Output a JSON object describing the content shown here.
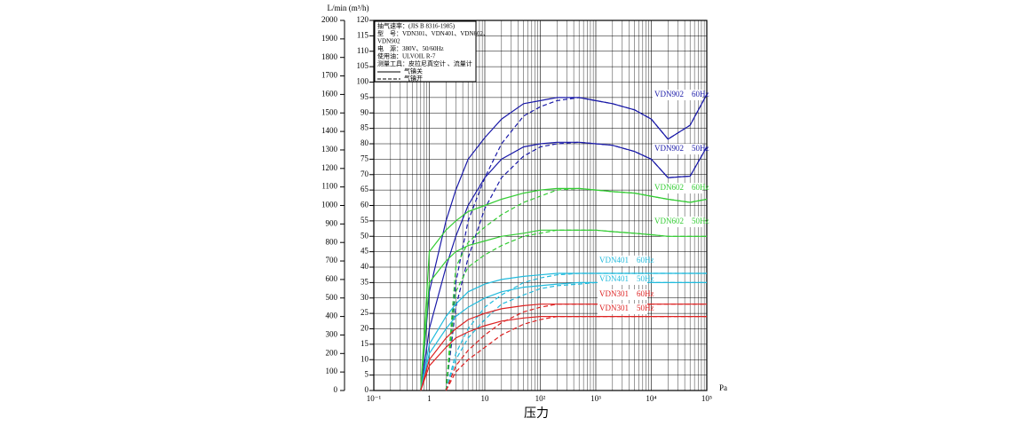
{
  "chart_data": {
    "type": "line",
    "y_axis_label": "L/min (m³/h)",
    "x_axis_label": "压力",
    "x_unit": "Pa",
    "log_x": true,
    "xlim": [
      0.1,
      100000
    ],
    "xticks": [
      {
        "value": 0.1,
        "label": "10⁻¹"
      },
      1,
      10,
      {
        "value": 100,
        "label": "10²"
      },
      {
        "value": 1000,
        "label": "10³"
      },
      {
        "value": 10000,
        "label": "10⁴"
      },
      {
        "value": 100000,
        "label": "10⁵"
      }
    ],
    "xminor": [
      0.2,
      0.3,
      0.4,
      0.5,
      0.6,
      0.7,
      0.8,
      0.9,
      2,
      3,
      4,
      5,
      6,
      7,
      8,
      9,
      20,
      30,
      40,
      50,
      60,
      70,
      80,
      90,
      200,
      300,
      400,
      500,
      600,
      700,
      800,
      900,
      2000,
      3000,
      4000,
      5000,
      6000,
      7000,
      8000,
      9000,
      20000,
      30000,
      40000,
      50000,
      60000,
      70000,
      80000,
      90000
    ],
    "ylim": [
      0,
      2000
    ],
    "yticks": [
      0,
      100,
      200,
      300,
      400,
      500,
      600,
      700,
      800,
      900,
      1000,
      1100,
      1200,
      1300,
      1400,
      1500,
      1600,
      1700,
      1800,
      1900,
      2000
    ],
    "y2lim": [
      0,
      120
    ],
    "y2ticks": [
      0,
      5,
      10,
      15,
      20,
      25,
      30,
      35,
      40,
      45,
      50,
      55,
      60,
      65,
      70,
      75,
      80,
      85,
      90,
      95,
      100,
      105,
      110,
      115,
      120
    ],
    "grid": true,
    "legend": {
      "lines": [
        "抽气速率：(JIS B 8316-1985)",
        "型　号：VDN301、VDN401、VDN602、",
        "VDN902",
        "电　源：380V、50/60Hz",
        "使用油：ULVOIL R-7",
        "测量工具：皮拉尼真空计 、流量计"
      ],
      "solid_label": "气镇关",
      "dashed_label": "气镇开"
    },
    "x": [
      0.7,
      1,
      2,
      3,
      5,
      10,
      20,
      50,
      100,
      200,
      500,
      1000,
      2000,
      5000,
      10000,
      20000,
      50000,
      100000
    ],
    "series": [
      {
        "name": "VDN902　60Hz",
        "color": "#1a1aa8",
        "axis": "y2",
        "values": [
          0,
          32,
          55,
          65,
          75,
          82,
          88,
          93,
          94,
          95,
          95,
          94,
          93,
          91,
          88,
          81.5,
          86,
          96
        ],
        "ballast_open_values": [
          null,
          null,
          0,
          35,
          55,
          69,
          80,
          89,
          92,
          94,
          95,
          94,
          93,
          91,
          88,
          81.5,
          86,
          96
        ]
      },
      {
        "name": "VDN902　50Hz",
        "color": "#1a1aa8",
        "axis": "y2",
        "values": [
          0,
          20,
          40,
          50,
          60,
          69,
          75,
          79,
          80,
          80.5,
          80.5,
          80,
          79.5,
          77.5,
          75,
          69,
          69.5,
          79
        ],
        "ballast_open_values": [
          null,
          null,
          0,
          27,
          43,
          59,
          69,
          76,
          79,
          80,
          80.5,
          80,
          79.5,
          77.5,
          75,
          69,
          69.5,
          79
        ]
      },
      {
        "name": "VDN602　60Hz",
        "color": "#33cc33",
        "axis": "y2",
        "values": [
          0,
          45,
          52,
          55,
          58,
          60,
          62,
          64,
          65,
          65.5,
          65.5,
          65,
          64.5,
          64,
          63,
          62,
          61,
          62
        ],
        "ballast_open_values": [
          null,
          null,
          0,
          40,
          48,
          53,
          57,
          61,
          63,
          65,
          65.5,
          65,
          64.5,
          64,
          63,
          62,
          61,
          62
        ]
      },
      {
        "name": "VDN602　50Hz",
        "color": "#33cc33",
        "axis": "y2",
        "values": [
          0,
          35,
          42,
          45,
          47,
          48.5,
          50,
          51,
          52,
          52,
          52,
          52,
          51.5,
          51,
          50.5,
          50,
          50,
          50
        ],
        "ballast_open_values": [
          null,
          null,
          0,
          32,
          40,
          44,
          47,
          50,
          51,
          52,
          52,
          52,
          51.5,
          51,
          50.5,
          50,
          50,
          50
        ]
      },
      {
        "name": "VDN401　60Hz",
        "color": "#22bbdd",
        "axis": "y2",
        "values": [
          0,
          15,
          24,
          28,
          32,
          34.5,
          36,
          37,
          37.5,
          38,
          38,
          38,
          38,
          38,
          38,
          38,
          38,
          38
        ],
        "ballast_open_values": [
          null,
          null,
          0,
          12,
          20,
          27,
          31,
          35,
          36.5,
          37.5,
          38,
          38,
          38,
          38,
          38,
          38,
          38,
          38
        ]
      },
      {
        "name": "VDN401　50Hz",
        "color": "#22bbdd",
        "axis": "y2",
        "values": [
          0,
          12,
          20,
          24,
          27,
          30,
          32,
          33.5,
          34,
          34.5,
          35,
          35,
          35,
          35,
          35,
          35,
          35,
          35
        ],
        "ballast_open_values": [
          null,
          null,
          0,
          10,
          17,
          23,
          28,
          31,
          33,
          34,
          34.5,
          35,
          35,
          35,
          35,
          35,
          35,
          35
        ]
      },
      {
        "name": "VDN301　60Hz",
        "color": "#dd2222",
        "axis": "y2",
        "values": [
          0,
          10,
          17,
          20,
          23,
          25,
          26.5,
          27.5,
          28,
          28,
          28,
          28,
          28,
          28,
          28,
          28,
          28,
          28
        ],
        "ballast_open_values": [
          null,
          null,
          0,
          8,
          13,
          18,
          22,
          25.5,
          27,
          28,
          28,
          28,
          28,
          28,
          28,
          28,
          28,
          28
        ]
      },
      {
        "name": "VDN301　50Hz",
        "color": "#dd2222",
        "axis": "y2",
        "values": [
          0,
          8,
          14,
          17,
          19,
          21,
          22.5,
          23.5,
          24,
          24,
          24,
          24,
          24,
          24,
          24,
          24,
          24,
          24
        ],
        "ballast_open_values": [
          null,
          null,
          0,
          6,
          10,
          14,
          18,
          21.5,
          23,
          24,
          24,
          24,
          24,
          24,
          24,
          24,
          24,
          24
        ]
      }
    ]
  }
}
